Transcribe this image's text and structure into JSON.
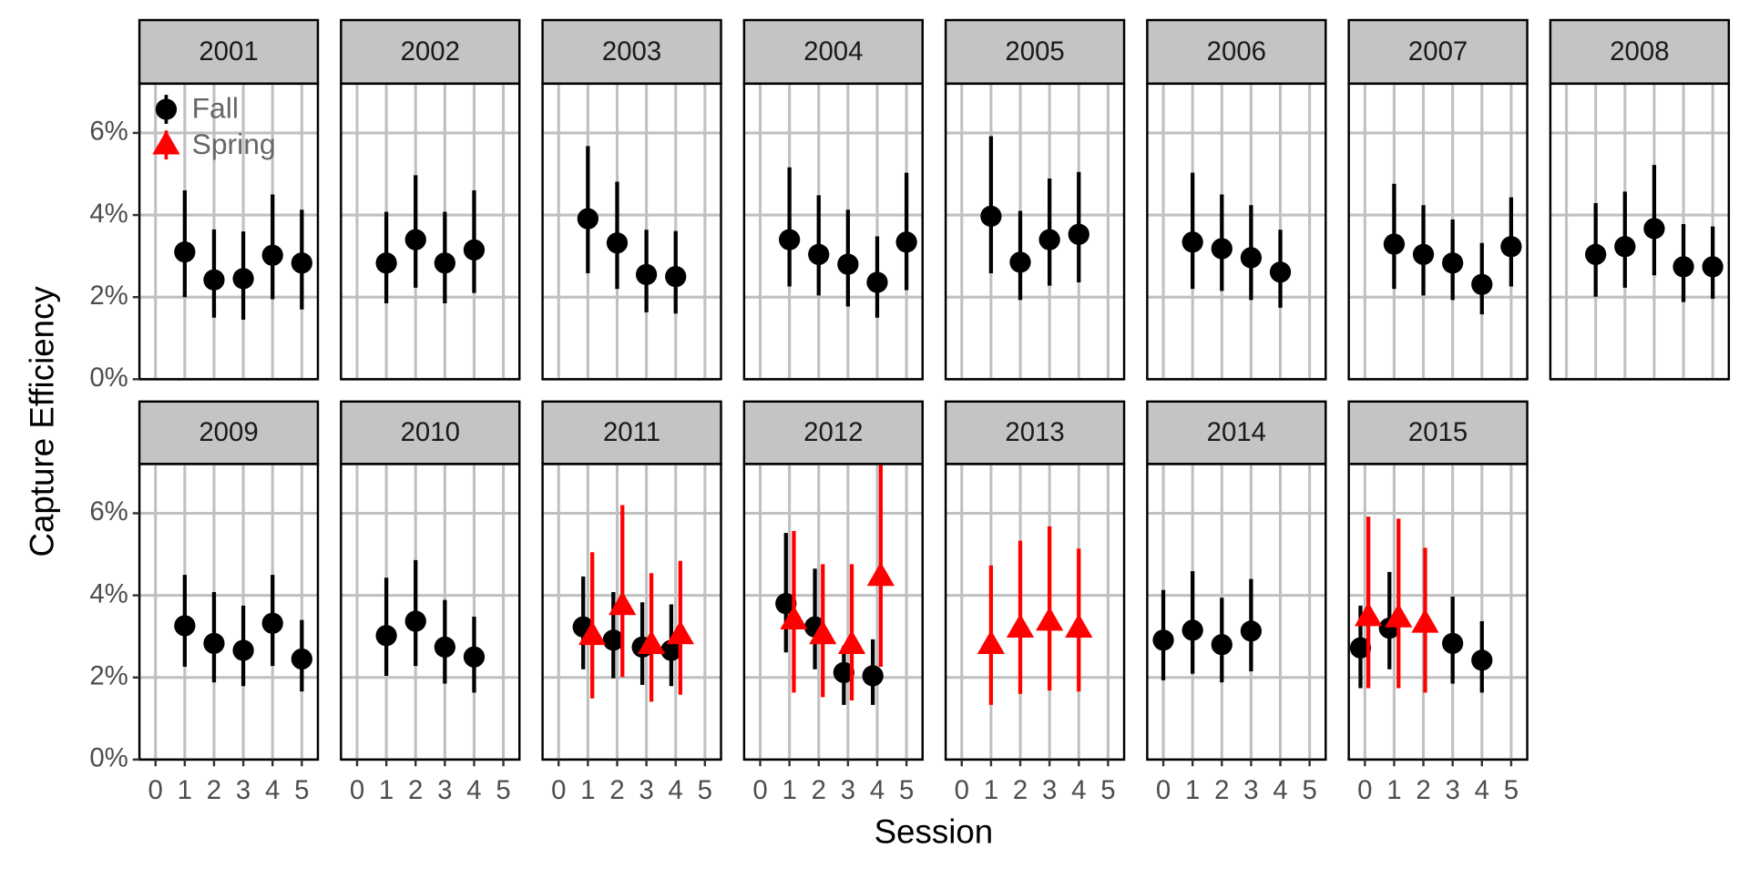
{
  "chart_data": {
    "type": "errorbar",
    "x_label": "Session",
    "y_label": "Capture Efficiency",
    "xlim": [
      -0.55,
      5.55
    ],
    "xticks": [
      0,
      1,
      2,
      3,
      4,
      5
    ],
    "ylim": [
      0,
      7.2
    ],
    "yticks": [
      {
        "value": 0,
        "label": "0%"
      },
      {
        "value": 2,
        "label": "2%"
      },
      {
        "value": 4,
        "label": "4%"
      },
      {
        "value": 6,
        "label": "6%"
      }
    ],
    "grid": true,
    "legend": {
      "position": "top-left"
    },
    "series_styles": [
      {
        "name": "Fall",
        "color": "#000000",
        "marker": "circle"
      },
      {
        "name": "Spring",
        "color": "#ff0000",
        "marker": "triangle"
      }
    ],
    "panels": [
      {
        "title": "2001",
        "series": [
          {
            "name": "Fall",
            "x": [
              1,
              2,
              3,
              4,
              5
            ],
            "values": [
              3.1,
              2.42,
              2.45,
              3.02,
              2.83
            ],
            "lower": [
              2.0,
              1.5,
              1.45,
              1.95,
              1.7
            ],
            "upper": [
              4.6,
              3.65,
              3.6,
              4.5,
              4.13
            ]
          }
        ]
      },
      {
        "title": "2002",
        "series": [
          {
            "name": "Fall",
            "x": [
              1,
              2,
              3,
              4
            ],
            "values": [
              2.83,
              3.4,
              2.83,
              3.15
            ],
            "lower": [
              1.85,
              2.23,
              1.85,
              2.1
            ],
            "upper": [
              4.08,
              4.97,
              4.08,
              4.6
            ]
          }
        ]
      },
      {
        "title": "2003",
        "series": [
          {
            "name": "Fall",
            "x": [
              1,
              2,
              3,
              4
            ],
            "values": [
              3.91,
              3.32,
              2.55,
              2.5
            ],
            "lower": [
              2.58,
              2.2,
              1.63,
              1.6
            ],
            "upper": [
              5.68,
              4.81,
              3.64,
              3.61
            ]
          }
        ]
      },
      {
        "title": "2004",
        "series": [
          {
            "name": "Fall",
            "x": [
              1,
              2,
              3,
              4,
              5
            ],
            "values": [
              3.4,
              3.04,
              2.8,
              2.36,
              3.34
            ],
            "lower": [
              2.26,
              2.04,
              1.77,
              1.5,
              2.17
            ],
            "upper": [
              5.16,
              4.48,
              4.13,
              3.48,
              5.03
            ]
          }
        ]
      },
      {
        "title": "2005",
        "series": [
          {
            "name": "Fall",
            "x": [
              1,
              2,
              3,
              4
            ],
            "values": [
              3.97,
              2.85,
              3.4,
              3.53
            ],
            "lower": [
              2.58,
              1.93,
              2.28,
              2.36
            ],
            "upper": [
              5.92,
              4.1,
              4.89,
              5.05
            ]
          }
        ]
      },
      {
        "title": "2006",
        "series": [
          {
            "name": "Fall",
            "x": [
              1,
              2,
              3,
              4
            ],
            "values": [
              3.34,
              3.18,
              2.96,
              2.61
            ],
            "lower": [
              2.2,
              2.15,
              1.93,
              1.74
            ],
            "upper": [
              5.03,
              4.5,
              4.24,
              3.64
            ]
          }
        ]
      },
      {
        "title": "2007",
        "series": [
          {
            "name": "Fall",
            "x": [
              1,
              2,
              3,
              4,
              5
            ],
            "values": [
              3.29,
              3.04,
              2.83,
              2.31,
              3.23
            ],
            "lower": [
              2.2,
              2.04,
              1.93,
              1.58,
              2.26
            ],
            "upper": [
              4.76,
              4.24,
              3.89,
              3.32,
              4.43
            ]
          }
        ]
      },
      {
        "title": "2008",
        "series": [
          {
            "name": "Fall",
            "x": [
              1,
              2,
              3,
              4,
              5
            ],
            "values": [
              3.04,
              3.23,
              3.67,
              2.74,
              2.74
            ],
            "lower": [
              2.01,
              2.23,
              2.53,
              1.88,
              1.96
            ],
            "upper": [
              4.29,
              4.57,
              5.22,
              3.78,
              3.72
            ]
          }
        ]
      },
      {
        "title": "2009",
        "series": [
          {
            "name": "Fall",
            "x": [
              1,
              2,
              3,
              4,
              5
            ],
            "values": [
              3.26,
              2.83,
              2.66,
              3.32,
              2.45
            ],
            "lower": [
              2.26,
              1.88,
              1.79,
              2.28,
              1.66
            ],
            "upper": [
              4.5,
              4.08,
              3.75,
              4.5,
              3.4
            ]
          }
        ]
      },
      {
        "title": "2010",
        "series": [
          {
            "name": "Fall",
            "x": [
              1,
              2,
              3,
              4
            ],
            "values": [
              3.02,
              3.37,
              2.74,
              2.5
            ],
            "lower": [
              2.04,
              2.28,
              1.85,
              1.63
            ],
            "upper": [
              4.43,
              4.86,
              3.89,
              3.48
            ]
          }
        ]
      },
      {
        "title": "2011",
        "series": [
          {
            "name": "Fall",
            "x": [
              0.84,
              1.87,
              2.86,
              3.85
            ],
            "values": [
              3.23,
              2.91,
              2.74,
              2.66
            ],
            "lower": [
              2.2,
              1.98,
              1.82,
              1.79
            ],
            "upper": [
              4.46,
              4.08,
              3.83,
              3.78
            ]
          },
          {
            "name": "Spring",
            "x": [
              1.15,
              2.18,
              3.17,
              4.16
            ],
            "values": [
              3.02,
              3.75,
              2.8,
              3.04
            ],
            "lower": [
              1.49,
              2.01,
              1.41,
              1.58
            ],
            "upper": [
              5.05,
              6.2,
              4.54,
              4.84
            ]
          }
        ]
      },
      {
        "title": "2012",
        "series": [
          {
            "name": "Fall",
            "x": [
              0.88,
              1.87,
              2.86,
              3.85
            ],
            "values": [
              3.8,
              3.23,
              2.12,
              2.04
            ],
            "lower": [
              2.61,
              2.2,
              1.33,
              1.33
            ],
            "upper": [
              5.52,
              4.65,
              2.77,
              2.93
            ]
          },
          {
            "name": "Spring",
            "x": [
              1.15,
              2.14,
              3.13,
              4.12
            ],
            "values": [
              3.4,
              3.04,
              2.8,
              4.46
            ],
            "lower": [
              1.63,
              1.52,
              1.44,
              2.26
            ],
            "upper": [
              5.57,
              4.76,
              4.76,
              7.5
            ]
          }
        ]
      },
      {
        "title": "2013",
        "series": [
          {
            "name": "Spring",
            "x": [
              1,
              2,
              3,
              4
            ],
            "values": [
              2.8,
              3.2,
              3.37,
              3.2
            ],
            "lower": [
              1.33,
              1.6,
              1.68,
              1.66
            ],
            "upper": [
              4.73,
              5.33,
              5.68,
              5.14
            ]
          }
        ]
      },
      {
        "title": "2014",
        "series": [
          {
            "name": "Fall",
            "x": [
              0,
              1,
              2,
              3
            ],
            "values": [
              2.91,
              3.15,
              2.8,
              3.13
            ],
            "lower": [
              1.93,
              2.09,
              1.88,
              2.15
            ],
            "upper": [
              4.13,
              4.59,
              3.94,
              4.4
            ]
          }
        ]
      },
      {
        "title": "2015",
        "series": [
          {
            "name": "Fall",
            "x": [
              -0.15,
              0.84,
              3,
              4
            ],
            "values": [
              2.72,
              3.2,
              2.83,
              2.42
            ],
            "lower": [
              1.74,
              2.2,
              1.85,
              1.63
            ],
            "upper": [
              3.75,
              4.57,
              3.97,
              3.37
            ]
          },
          {
            "name": "Spring",
            "x": [
              0.12,
              1.15,
              2.06
            ],
            "values": [
              3.48,
              3.45,
              3.32
            ],
            "lower": [
              1.74,
              1.74,
              1.63
            ],
            "upper": [
              5.92,
              5.87,
              5.16
            ]
          }
        ]
      }
    ]
  }
}
